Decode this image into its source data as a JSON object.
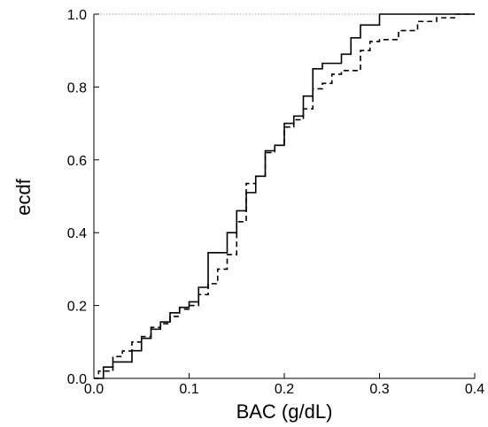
{
  "chart_data": {
    "type": "line",
    "title": "",
    "xlabel": "BAC (g/dL)",
    "ylabel": "ecdf",
    "xlim": [
      0.0,
      0.4
    ],
    "ylim": [
      0.0,
      1.0
    ],
    "x_ticks": [
      "0.0",
      "0.1",
      "0.2",
      "0.3",
      "0.4"
    ],
    "y_ticks": [
      "0.0",
      "0.2",
      "0.4",
      "0.6",
      "0.8",
      "1.0"
    ],
    "x_tick_values": [
      0.0,
      0.1,
      0.2,
      0.3,
      0.4
    ],
    "y_tick_values": [
      0.0,
      0.2,
      0.4,
      0.6,
      0.8,
      1.0
    ],
    "grid": false,
    "legend": "none",
    "reference_line": {
      "y": 1.0,
      "style": "dotted",
      "color": "#9a9a9a"
    },
    "series": [
      {
        "style": "solid",
        "color": "#000000",
        "x": [
          0.01,
          0.02,
          0.04,
          0.05,
          0.06,
          0.07,
          0.08,
          0.09,
          0.1,
          0.11,
          0.12,
          0.14,
          0.15,
          0.16,
          0.17,
          0.18,
          0.19,
          0.2,
          0.21,
          0.22,
          0.23,
          0.24,
          0.26,
          0.27,
          0.28,
          0.3
        ],
        "y": [
          0.031,
          0.045,
          0.076,
          0.11,
          0.135,
          0.155,
          0.18,
          0.195,
          0.21,
          0.25,
          0.345,
          0.4,
          0.46,
          0.51,
          0.555,
          0.625,
          0.64,
          0.7,
          0.72,
          0.775,
          0.85,
          0.865,
          0.89,
          0.935,
          0.97,
          1.0
        ]
      },
      {
        "style": "dashed",
        "color": "#000000",
        "x": [
          0.005,
          0.02,
          0.03,
          0.04,
          0.05,
          0.06,
          0.07,
          0.08,
          0.09,
          0.1,
          0.11,
          0.12,
          0.13,
          0.14,
          0.15,
          0.16,
          0.17,
          0.18,
          0.19,
          0.2,
          0.21,
          0.22,
          0.23,
          0.24,
          0.25,
          0.26,
          0.28,
          0.29,
          0.3,
          0.32,
          0.34,
          0.36,
          0.38
        ],
        "y": [
          0.02,
          0.06,
          0.075,
          0.1,
          0.115,
          0.14,
          0.15,
          0.17,
          0.19,
          0.2,
          0.23,
          0.26,
          0.3,
          0.34,
          0.43,
          0.535,
          0.555,
          0.62,
          0.64,
          0.69,
          0.71,
          0.74,
          0.795,
          0.81,
          0.835,
          0.845,
          0.9,
          0.925,
          0.93,
          0.955,
          0.98,
          0.99,
          1.0
        ]
      }
    ]
  }
}
